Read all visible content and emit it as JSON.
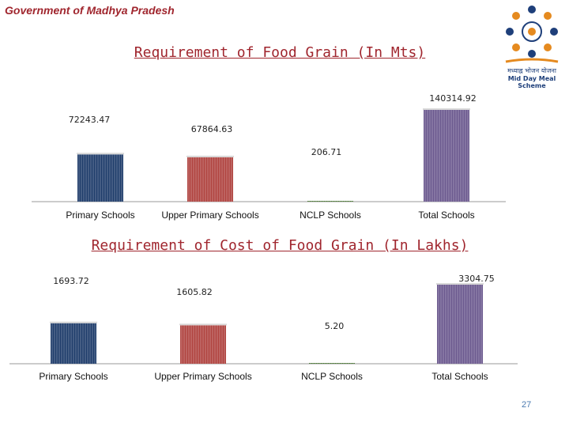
{
  "header": {
    "government": "Government of Madhya Pradesh",
    "logo_hindi": "मध्याह्न भोजन योजना",
    "logo_english": "Mid Day Meal Scheme"
  },
  "colors": {
    "title": "#a0262e",
    "primary": "#1f3d6b",
    "upper_primary": "#b04440",
    "nclp": "#4f7a3a",
    "total": "#6c5a8f",
    "axis": "#9a9a9a"
  },
  "chart_data": [
    {
      "type": "bar",
      "title": "Requirement of Food Grain (In Mts)",
      "categories": [
        "Primary Schools",
        "Upper Primary Schools",
        "NCLP Schools",
        "Total Schools"
      ],
      "values": [
        72243.47,
        67864.63,
        206.71,
        140314.92
      ],
      "data_labels": [
        "72243.47",
        "67864.63",
        "206.71",
        "140314.92"
      ],
      "xlabel": "",
      "ylabel": "",
      "ylim": [
        0,
        140314.92
      ],
      "grid": false,
      "legend": false
    },
    {
      "type": "bar",
      "title": "Requirement of Cost of Food Grain (In Lakhs)",
      "categories": [
        "Primary Schools",
        "Upper Primary Schools",
        "NCLP Schools",
        "Total Schools"
      ],
      "values": [
        1693.72,
        1605.82,
        5.2,
        3304.75
      ],
      "data_labels": [
        "1693.72",
        "1605.82",
        "5.20",
        "3304.75"
      ],
      "xlabel": "",
      "ylabel": "",
      "ylim": [
        0,
        3304.75
      ],
      "grid": false,
      "legend": false
    }
  ],
  "footer": {
    "page_number": "27"
  }
}
